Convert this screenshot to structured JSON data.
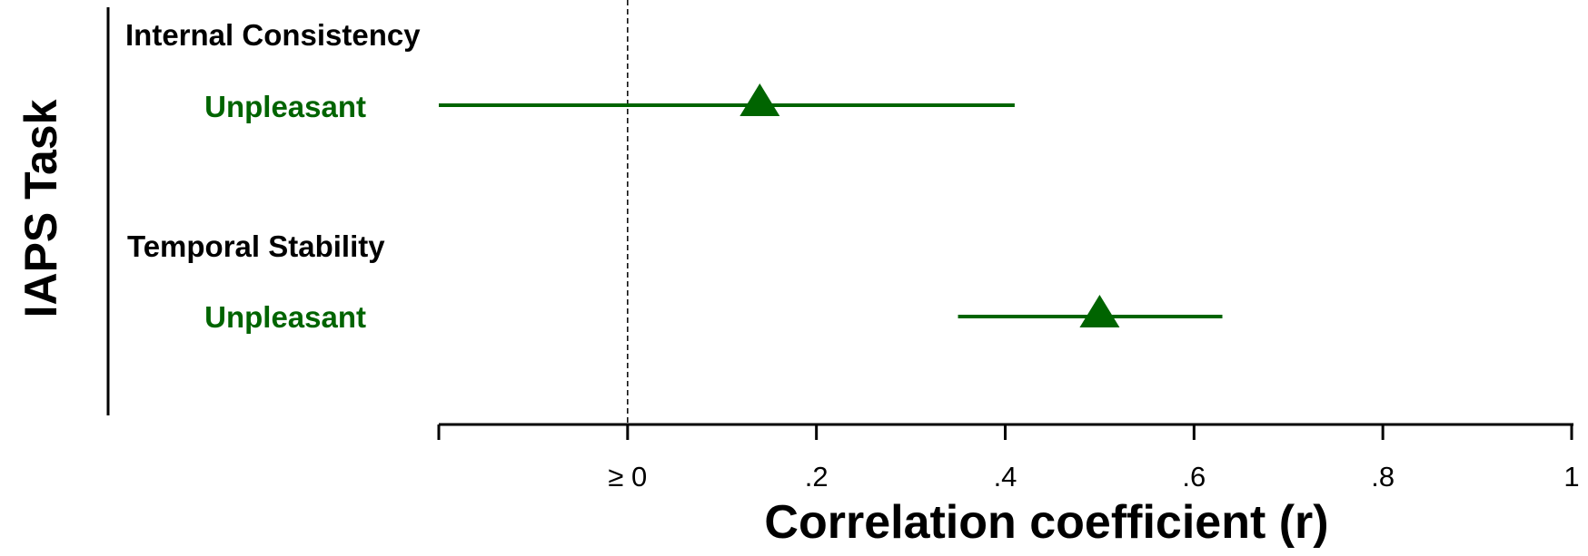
{
  "chart_data": {
    "type": "forest",
    "title": "",
    "ylabel": "IAPS Task",
    "xlabel": "Correlation coefficient (r)",
    "xlim": [
      -0.2,
      1.0
    ],
    "reference_line_x": 0,
    "ticks": [
      {
        "value": -0.2,
        "label": ""
      },
      {
        "value": 0,
        "label": "≥ 0"
      },
      {
        "value": 0.2,
        "label": ".2"
      },
      {
        "value": 0.4,
        "label": ".4"
      },
      {
        "value": 0.6,
        "label": ".6"
      },
      {
        "value": 0.8,
        "label": ".8"
      },
      {
        "value": 1.0,
        "label": "1"
      }
    ],
    "color": "#006400",
    "groups": [
      {
        "name": "Internal Consistency",
        "rows": [
          {
            "label": "Unpleasant",
            "estimate": 0.14,
            "lower": -0.2,
            "upper": 0.41
          }
        ]
      },
      {
        "name": "Temporal Stability",
        "rows": [
          {
            "label": "Unpleasant",
            "estimate": 0.5,
            "lower": 0.35,
            "upper": 0.63
          }
        ]
      }
    ]
  }
}
